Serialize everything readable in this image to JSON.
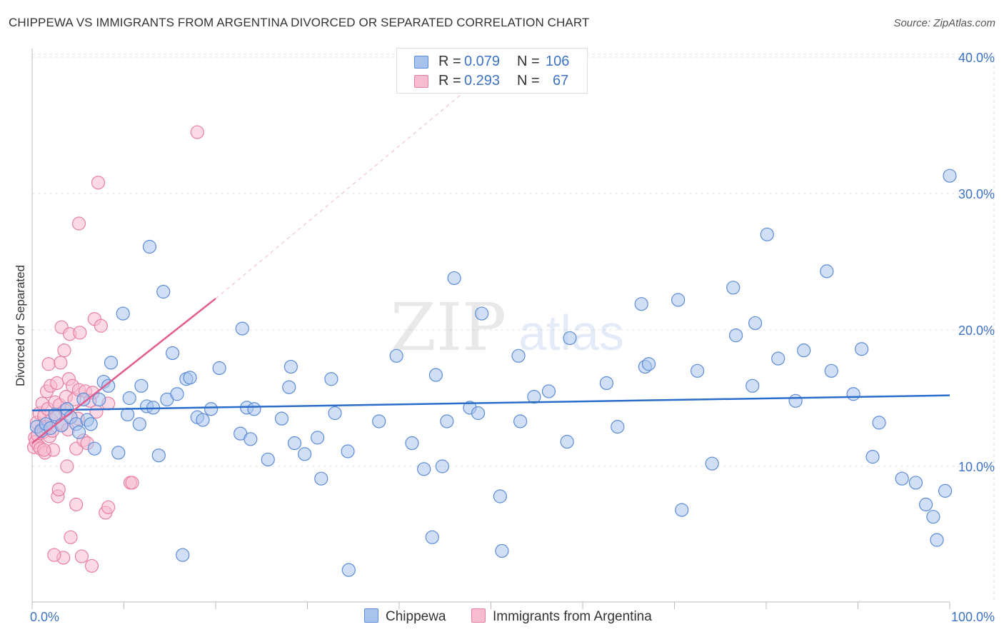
{
  "title": "CHIPPEWA VS IMMIGRANTS FROM ARGENTINA DIVORCED OR SEPARATED CORRELATION CHART",
  "source": "Source: ZipAtlas.com",
  "watermark": {
    "zip": "ZIP",
    "atlas": "atlas"
  },
  "legend": {
    "r_label": "R =",
    "n_label": "N =",
    "rows": [
      {
        "name": "Chippewa",
        "r": "0.079",
        "n": "106",
        "color": "#a9c4ec",
        "stroke": "#5b8bd6"
      },
      {
        "name": "Immigrants from Argentina",
        "r": "0.293",
        "n": "67",
        "color": "#f8bcd0",
        "stroke": "#e77fa3"
      }
    ]
  },
  "chart_data": {
    "type": "scatter",
    "title": "CHIPPEWA VS IMMIGRANTS FROM ARGENTINA DIVORCED OR SEPARATED CORRELATION CHART",
    "xlabel": "",
    "ylabel": "Divorced or Separated",
    "xlim": [
      0,
      100
    ],
    "ylim": [
      0,
      41
    ],
    "x_tick_labels": [
      "0.0%",
      "100.0%"
    ],
    "y_ticks": [
      10,
      20,
      30,
      40
    ],
    "y_tick_labels": [
      "10.0%",
      "20.0%",
      "30.0%",
      "40.0%"
    ],
    "series": [
      {
        "name": "Chippewa",
        "color": "#a9c4ec",
        "stroke": "#5b8bd6",
        "trend": {
          "x0": 0,
          "y0": 14.1,
          "x1": 100,
          "y1": 15.2,
          "color": "#2a6cc9"
        },
        "points": [
          [
            0.5,
            12.9
          ],
          [
            1.0,
            12.6
          ],
          [
            1.5,
            13.1
          ],
          [
            2.0,
            12.8
          ],
          [
            2.5,
            13.8
          ],
          [
            3.2,
            13.0
          ],
          [
            3.8,
            14.2
          ],
          [
            4.2,
            13.6
          ],
          [
            4.8,
            13.1
          ],
          [
            5.1,
            12.5
          ],
          [
            5.6,
            14.9
          ],
          [
            6.0,
            13.4
          ],
          [
            6.4,
            13.1
          ],
          [
            6.8,
            11.3
          ],
          [
            7.3,
            14.9
          ],
          [
            7.8,
            16.2
          ],
          [
            8.3,
            15.9
          ],
          [
            8.6,
            17.6
          ],
          [
            9.4,
            11.0
          ],
          [
            9.9,
            21.2
          ],
          [
            10.4,
            13.8
          ],
          [
            10.6,
            15.0
          ],
          [
            11.7,
            13.1
          ],
          [
            11.9,
            15.9
          ],
          [
            12.5,
            14.4
          ],
          [
            12.8,
            26.1
          ],
          [
            13.2,
            14.3
          ],
          [
            13.8,
            10.8
          ],
          [
            14.3,
            22.8
          ],
          [
            14.7,
            14.9
          ],
          [
            15.3,
            18.3
          ],
          [
            15.8,
            15.3
          ],
          [
            16.4,
            3.5
          ],
          [
            16.8,
            16.4
          ],
          [
            17.2,
            16.5
          ],
          [
            18.0,
            13.6
          ],
          [
            18.6,
            13.4
          ],
          [
            19.5,
            14.2
          ],
          [
            20.4,
            17.2
          ],
          [
            22.7,
            12.4
          ],
          [
            22.9,
            20.1
          ],
          [
            23.4,
            14.3
          ],
          [
            23.8,
            12.0
          ],
          [
            24.2,
            14.2
          ],
          [
            25.7,
            10.5
          ],
          [
            27.2,
            13.5
          ],
          [
            28.0,
            15.8
          ],
          [
            28.2,
            17.3
          ],
          [
            28.6,
            11.7
          ],
          [
            29.7,
            10.9
          ],
          [
            31.1,
            12.1
          ],
          [
            31.5,
            9.1
          ],
          [
            32.6,
            16.4
          ],
          [
            33.0,
            13.9
          ],
          [
            34.4,
            11.1
          ],
          [
            37.8,
            13.3
          ],
          [
            39.7,
            18.1
          ],
          [
            41.4,
            11.7
          ],
          [
            42.7,
            9.8
          ],
          [
            43.6,
            4.8
          ],
          [
            44.0,
            16.7
          ],
          [
            44.7,
            10.0
          ],
          [
            45.2,
            13.3
          ],
          [
            46.0,
            23.8
          ],
          [
            47.7,
            14.3
          ],
          [
            48.6,
            13.9
          ],
          [
            49.0,
            21.2
          ],
          [
            51.0,
            7.8
          ],
          [
            51.2,
            3.8
          ],
          [
            53.0,
            18.1
          ],
          [
            53.2,
            13.3
          ],
          [
            54.7,
            15.1
          ],
          [
            56.3,
            15.5
          ],
          [
            58.3,
            11.8
          ],
          [
            58.6,
            19.4
          ],
          [
            62.6,
            16.1
          ],
          [
            63.8,
            12.9
          ],
          [
            66.4,
            21.9
          ],
          [
            66.8,
            17.3
          ],
          [
            67.2,
            17.5
          ],
          [
            70.4,
            22.2
          ],
          [
            70.8,
            6.8
          ],
          [
            72.5,
            17.0
          ],
          [
            74.1,
            10.2
          ],
          [
            76.4,
            23.1
          ],
          [
            76.7,
            19.6
          ],
          [
            78.5,
            15.9
          ],
          [
            78.8,
            20.5
          ],
          [
            80.1,
            27.0
          ],
          [
            81.3,
            17.9
          ],
          [
            83.2,
            14.8
          ],
          [
            84.1,
            18.5
          ],
          [
            86.6,
            24.3
          ],
          [
            87.1,
            17.0
          ],
          [
            89.5,
            15.3
          ],
          [
            90.4,
            18.6
          ],
          [
            91.6,
            10.7
          ],
          [
            92.3,
            13.2
          ],
          [
            94.8,
            9.1
          ],
          [
            96.3,
            8.8
          ],
          [
            97.4,
            7.2
          ],
          [
            98.2,
            6.3
          ],
          [
            98.6,
            4.6
          ],
          [
            99.5,
            8.2
          ],
          [
            100.0,
            31.3
          ],
          [
            34.5,
            2.4
          ]
        ]
      },
      {
        "name": "Immigrants from Argentina",
        "color": "#f8bcd0",
        "stroke": "#e77fa3",
        "trend": {
          "x0": 0,
          "y0": 11.7,
          "x1": 20,
          "y1": 22.3,
          "color": "#e05c8c",
          "dash_to": {
            "x": 47,
            "y": 37.4
          }
        },
        "points": [
          [
            0.2,
            11.4
          ],
          [
            0.3,
            12.1
          ],
          [
            0.4,
            11.8
          ],
          [
            0.5,
            13.2
          ],
          [
            0.6,
            12.3
          ],
          [
            0.7,
            11.5
          ],
          [
            0.8,
            13.9
          ],
          [
            0.9,
            11.3
          ],
          [
            1.0,
            12.7
          ],
          [
            1.1,
            14.6
          ],
          [
            1.2,
            12.5
          ],
          [
            1.3,
            13.7
          ],
          [
            1.4,
            11.0
          ],
          [
            1.5,
            12.9
          ],
          [
            1.6,
            15.5
          ],
          [
            1.7,
            14.2
          ],
          [
            1.8,
            17.5
          ],
          [
            1.9,
            12.2
          ],
          [
            2.0,
            15.9
          ],
          [
            2.1,
            13.4
          ],
          [
            2.2,
            12.6
          ],
          [
            2.3,
            11.2
          ],
          [
            2.5,
            14.7
          ],
          [
            2.6,
            13.6
          ],
          [
            2.7,
            16.1
          ],
          [
            2.8,
            7.8
          ],
          [
            2.9,
            8.3
          ],
          [
            3.0,
            14.5
          ],
          [
            3.1,
            17.6
          ],
          [
            3.2,
            20.2
          ],
          [
            3.3,
            13.1
          ],
          [
            3.4,
            3.3
          ],
          [
            3.5,
            18.5
          ],
          [
            3.6,
            14.1
          ],
          [
            3.7,
            15.1
          ],
          [
            3.8,
            10.0
          ],
          [
            3.9,
            12.7
          ],
          [
            4.0,
            16.4
          ],
          [
            4.1,
            19.7
          ],
          [
            4.2,
            4.8
          ],
          [
            4.4,
            15.9
          ],
          [
            4.6,
            14.9
          ],
          [
            4.8,
            11.3
          ],
          [
            5.0,
            13.5
          ],
          [
            5.1,
            15.6
          ],
          [
            5.2,
            19.8
          ],
          [
            5.4,
            3.4
          ],
          [
            5.6,
            11.9
          ],
          [
            5.8,
            15.5
          ],
          [
            6.0,
            11.7
          ],
          [
            6.3,
            14.8
          ],
          [
            6.5,
            2.7
          ],
          [
            6.6,
            15.4
          ],
          [
            6.8,
            20.8
          ],
          [
            7.0,
            14.0
          ],
          [
            7.2,
            30.8
          ],
          [
            7.5,
            20.3
          ],
          [
            8.3,
            14.6
          ],
          [
            8.0,
            6.6
          ],
          [
            8.3,
            7.0
          ],
          [
            10.7,
            8.8
          ],
          [
            10.9,
            8.8
          ],
          [
            18.0,
            34.5
          ],
          [
            5.1,
            27.8
          ],
          [
            4.8,
            7.2
          ],
          [
            2.4,
            3.5
          ],
          [
            1.3,
            11.2
          ]
        ]
      }
    ]
  }
}
